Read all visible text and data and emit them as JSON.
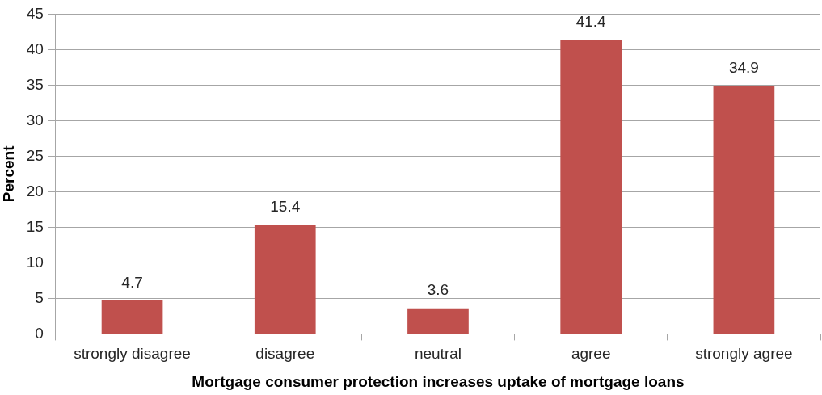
{
  "chart_data": {
    "type": "bar",
    "xlabel": "Mortgage consumer protection increases uptake of mortgage loans",
    "ylabel": "Percent",
    "categories": [
      "strongly disagree",
      "disagree",
      "neutral",
      "agree",
      "strongly agree"
    ],
    "values": [
      4.7,
      15.4,
      3.6,
      41.4,
      34.9
    ],
    "color": "#c0504d",
    "ylim": [
      0,
      45
    ],
    "yticks": [
      0,
      5,
      10,
      15,
      20,
      25,
      30,
      35,
      40,
      45
    ],
    "grid": "y",
    "data_labels": true
  }
}
